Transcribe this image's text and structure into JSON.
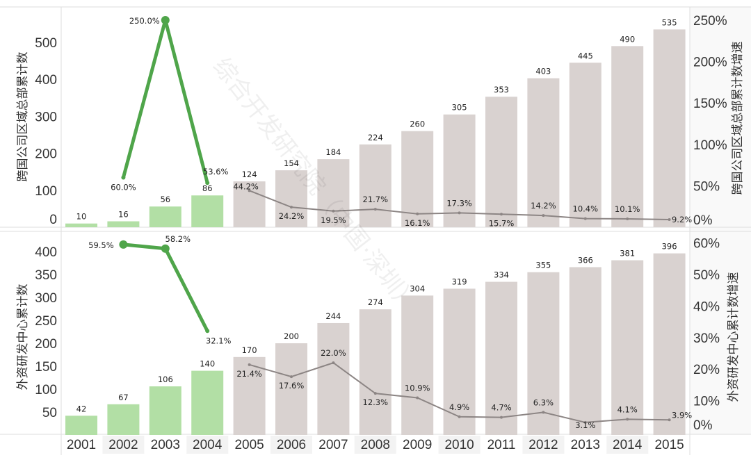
{
  "chart_data": [
    {
      "type": "bar+line",
      "ylabel": "跨国公司区域总部累计数",
      "y2label": "跨国公司区域总部累计数增速",
      "categories": [
        "2001",
        "2002",
        "2003",
        "2004",
        "2005",
        "2006",
        "2007",
        "2008",
        "2009",
        "2010",
        "2011",
        "2012",
        "2013",
        "2014",
        "2015"
      ],
      "bar_values": [
        10,
        16,
        56,
        86,
        124,
        154,
        184,
        224,
        260,
        305,
        353,
        403,
        445,
        490,
        535
      ],
      "growth_values": [
        null,
        60.0,
        250.0,
        53.6,
        44.2,
        24.2,
        19.5,
        21.7,
        16.1,
        17.3,
        15.7,
        14.2,
        10.4,
        10.1,
        9.2
      ],
      "growth_labels": [
        "",
        "60.0%",
        "250.0%",
        "53.6%",
        "44.2%",
        "24.2%",
        "19.5%",
        "21.7%",
        "16.1%",
        "17.3%",
        "15.7%",
        "14.2%",
        "10.4%",
        "10.1%",
        "9.2%"
      ],
      "highlight_years": [
        "2001",
        "2002",
        "2003",
        "2004"
      ],
      "ylim": [
        0,
        570
      ],
      "yticks": [
        "0",
        "100",
        "200",
        "300",
        "400",
        "500"
      ],
      "y2lim": [
        0,
        250
      ],
      "y2ticks": [
        "0%",
        "50%",
        "100%",
        "150%",
        "200%",
        "250%"
      ]
    },
    {
      "type": "bar+line",
      "ylabel": "外资研发中心累计数",
      "y2label": "外资研发中心累计数增速",
      "categories": [
        "2001",
        "2002",
        "2003",
        "2004",
        "2005",
        "2006",
        "2007",
        "2008",
        "2009",
        "2010",
        "2011",
        "2012",
        "2013",
        "2014",
        "2015"
      ],
      "bar_values": [
        42,
        67,
        106,
        140,
        170,
        200,
        244,
        274,
        304,
        319,
        334,
        355,
        366,
        381,
        396
      ],
      "growth_values": [
        null,
        59.5,
        58.2,
        32.1,
        21.4,
        17.6,
        22.0,
        12.3,
        10.9,
        4.9,
        4.7,
        6.3,
        3.1,
        4.1,
        3.9
      ],
      "growth_labels": [
        "",
        "59.5%",
        "58.2%",
        "32.1%",
        "21.4%",
        "17.6%",
        "22.0%",
        "12.3%",
        "10.9%",
        "4.9%",
        "4.7%",
        "6.3%",
        "3.1%",
        "4.1%",
        "3.9%"
      ],
      "highlight_years": [
        "2001",
        "2002",
        "2003",
        "2004"
      ],
      "ylim": [
        0,
        420
      ],
      "yticks": [
        "50",
        "100",
        "150",
        "200",
        "250",
        "300",
        "350",
        "400"
      ],
      "y2lim": [
        0,
        60
      ],
      "y2ticks": [
        "0%",
        "10%",
        "20%",
        "30%",
        "40%",
        "50%",
        "60%"
      ]
    }
  ],
  "colors": {
    "highlight_bar": "#b2dfa5",
    "normal_bar": "#d9d2d0",
    "highlight_line": "#4fa54a",
    "normal_line": "#8c8584"
  },
  "watermark": "综合开发研究院（中国·深圳）"
}
